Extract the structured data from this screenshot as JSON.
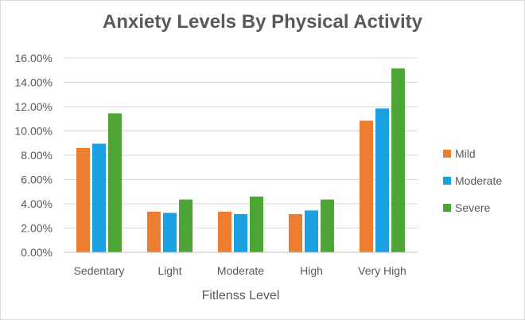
{
  "chart_data": {
    "type": "bar",
    "title": "Anxiety Levels By Physical Activity",
    "xlabel": "Fitlenss Level",
    "ylabel": "",
    "categories": [
      "Sedentary",
      "Light",
      "Moderate",
      "High",
      "Very High"
    ],
    "series": [
      {
        "name": "Mild",
        "color": "#ED7D31",
        "values": [
          8.6,
          3.35,
          3.35,
          3.15,
          10.85
        ]
      },
      {
        "name": "Moderate",
        "color": "#1BA1E2",
        "values": [
          8.95,
          3.25,
          3.15,
          3.45,
          11.85
        ]
      },
      {
        "name": "Severe",
        "color": "#4CA535",
        "values": [
          11.45,
          4.35,
          4.6,
          4.35,
          15.15
        ]
      }
    ],
    "ylim": [
      0,
      16
    ],
    "yticks": [
      "0.00%",
      "2.00%",
      "4.00%",
      "6.00%",
      "8.00%",
      "10.00%",
      "12.00%",
      "14.00%",
      "16.00%"
    ],
    "ytick_values": [
      0,
      2,
      4,
      6,
      8,
      10,
      12,
      14,
      16
    ],
    "grid": true,
    "legend_position": "right"
  }
}
